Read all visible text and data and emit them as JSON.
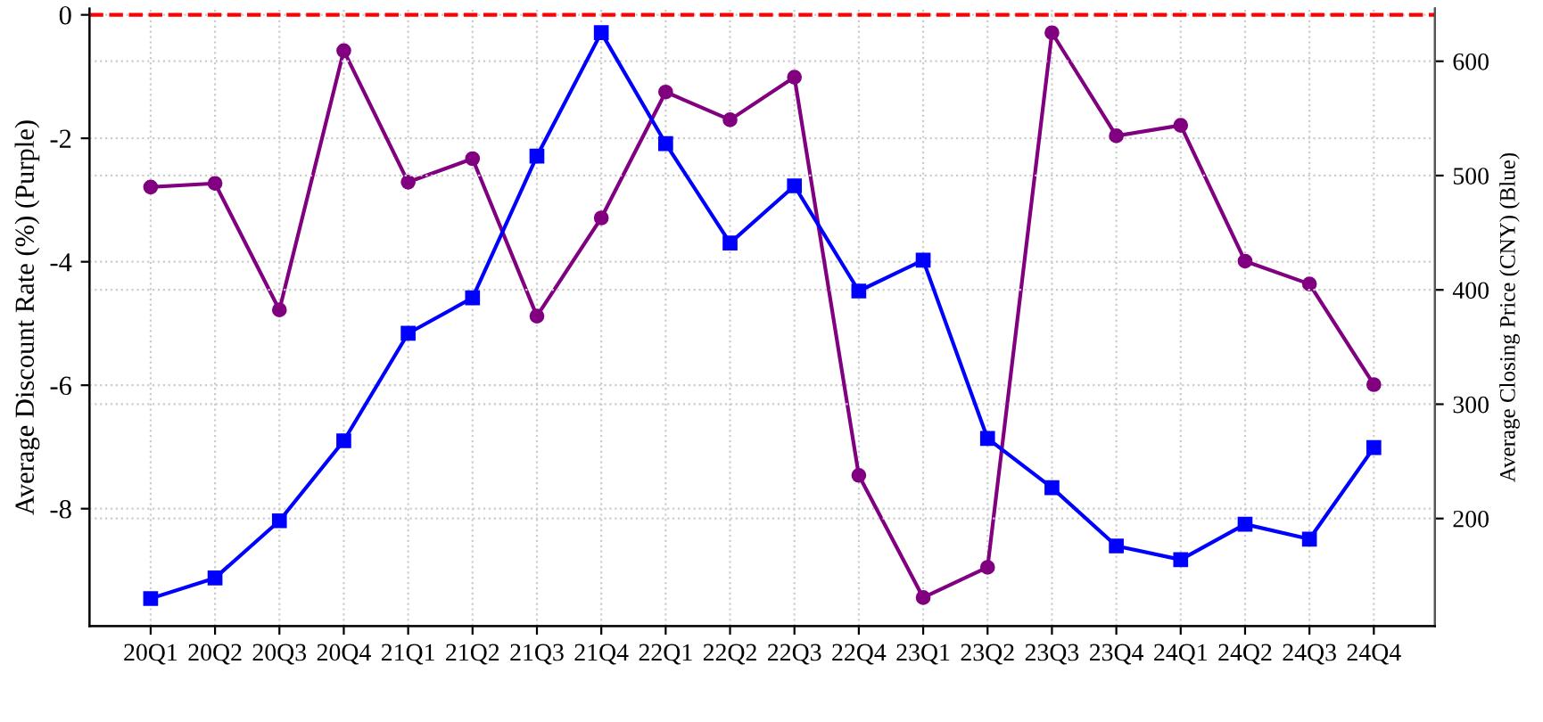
{
  "chart_data": {
    "type": "line",
    "ylabel": "Average Discount Rate (%) (Purple)",
    "y2label": "Average Closing Price (CNY) (Blue)",
    "categories": [
      "20Q1",
      "20Q2",
      "20Q3",
      "20Q4",
      "21Q1",
      "21Q2",
      "21Q3",
      "21Q4",
      "22Q1",
      "22Q2",
      "22Q3",
      "22Q4",
      "23Q1",
      "23Q2",
      "23Q3",
      "23Q4",
      "24Q1",
      "24Q2",
      "24Q3",
      "24Q4"
    ],
    "series": [
      {
        "color": "#800080",
        "marker": "circle",
        "values": [
          -2.79,
          -2.73,
          -4.78,
          -0.58,
          -2.71,
          -2.33,
          -4.88,
          -3.29,
          -1.25,
          -1.7,
          -1.01,
          -7.46,
          -9.44,
          -8.95,
          -0.29,
          -1.96,
          -1.79,
          -3.99,
          -4.36,
          -5.99
        ]
      },
      {
        "color": "#0000ff",
        "marker": "square",
        "axis": "y2",
        "values": [
          130,
          148,
          198,
          268,
          362,
          393,
          517,
          625,
          528,
          441,
          491,
          399,
          426,
          270,
          227,
          176,
          164,
          195,
          182,
          262
        ]
      }
    ],
    "ylim": [
      -9.9,
      0.1
    ],
    "yticks": [
      -8,
      -6,
      -4,
      -2,
      0
    ],
    "y2lim": [
      106,
      646
    ],
    "y2ticks": [
      200,
      300,
      400,
      500,
      600
    ],
    "ref_lines": [
      {
        "axis": "y",
        "value": 0,
        "color": "#ff0000",
        "line_style": "dashed"
      }
    ],
    "grid": true,
    "line_style": "solid"
  }
}
